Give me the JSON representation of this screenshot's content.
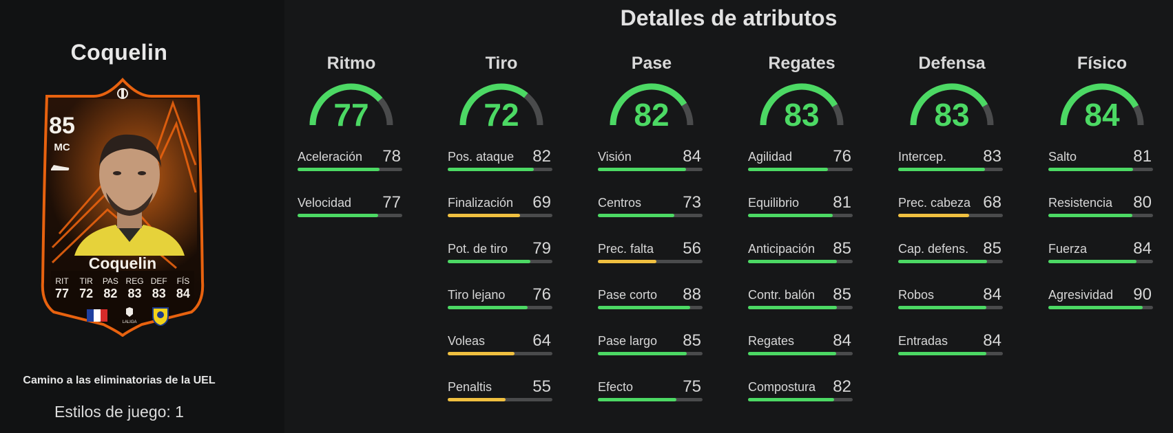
{
  "page_title": "Detalles de atributos",
  "player": {
    "name": "Coquelin",
    "card_name": "Coquelin",
    "rating": "85",
    "position": "MC",
    "card_stats": [
      {
        "label": "RIT",
        "value": "77"
      },
      {
        "label": "TIR",
        "value": "72"
      },
      {
        "label": "PAS",
        "value": "82"
      },
      {
        "label": "REG",
        "value": "83"
      },
      {
        "label": "DEF",
        "value": "83"
      },
      {
        "label": "FÍS",
        "value": "84"
      }
    ],
    "league_logo_text": "LALIGA",
    "promo": "Camino a las eliminatorias de la UEL",
    "playstyles": "Estilos de juego: 1"
  },
  "colors": {
    "green": "#4cd964",
    "yellow": "#f0c040",
    "track": "#4a4b4c",
    "card_orange": "#e8620f"
  },
  "categories": [
    {
      "name": "Ritmo",
      "value": "77",
      "attrs": [
        {
          "name": "Aceleración",
          "value": "78"
        },
        {
          "name": "Velocidad",
          "value": "77"
        }
      ]
    },
    {
      "name": "Tiro",
      "value": "72",
      "attrs": [
        {
          "name": "Pos. ataque",
          "value": "82"
        },
        {
          "name": "Finalización",
          "value": "69"
        },
        {
          "name": "Pot. de tiro",
          "value": "79"
        },
        {
          "name": "Tiro lejano",
          "value": "76"
        },
        {
          "name": "Voleas",
          "value": "64"
        },
        {
          "name": "Penaltis",
          "value": "55"
        }
      ]
    },
    {
      "name": "Pase",
      "value": "82",
      "attrs": [
        {
          "name": "Visión",
          "value": "84"
        },
        {
          "name": "Centros",
          "value": "73"
        },
        {
          "name": "Prec. falta",
          "value": "56"
        },
        {
          "name": "Pase corto",
          "value": "88"
        },
        {
          "name": "Pase largo",
          "value": "85"
        },
        {
          "name": "Efecto",
          "value": "75"
        }
      ]
    },
    {
      "name": "Regates",
      "value": "83",
      "attrs": [
        {
          "name": "Agilidad",
          "value": "76"
        },
        {
          "name": "Equilibrio",
          "value": "81"
        },
        {
          "name": "Anticipación",
          "value": "85"
        },
        {
          "name": "Contr. balón",
          "value": "85"
        },
        {
          "name": "Regates",
          "value": "84"
        },
        {
          "name": "Compostura",
          "value": "82"
        }
      ]
    },
    {
      "name": "Defensa",
      "value": "83",
      "attrs": [
        {
          "name": "Intercep.",
          "value": "83"
        },
        {
          "name": "Prec. cabeza",
          "value": "68"
        },
        {
          "name": "Cap. defens.",
          "value": "85"
        },
        {
          "name": "Robos",
          "value": "84"
        },
        {
          "name": "Entradas",
          "value": "84"
        }
      ]
    },
    {
      "name": "Físico",
      "value": "84",
      "attrs": [
        {
          "name": "Salto",
          "value": "81"
        },
        {
          "name": "Resistencia",
          "value": "80"
        },
        {
          "name": "Fuerza",
          "value": "84"
        },
        {
          "name": "Agresividad",
          "value": "90"
        }
      ]
    }
  ]
}
